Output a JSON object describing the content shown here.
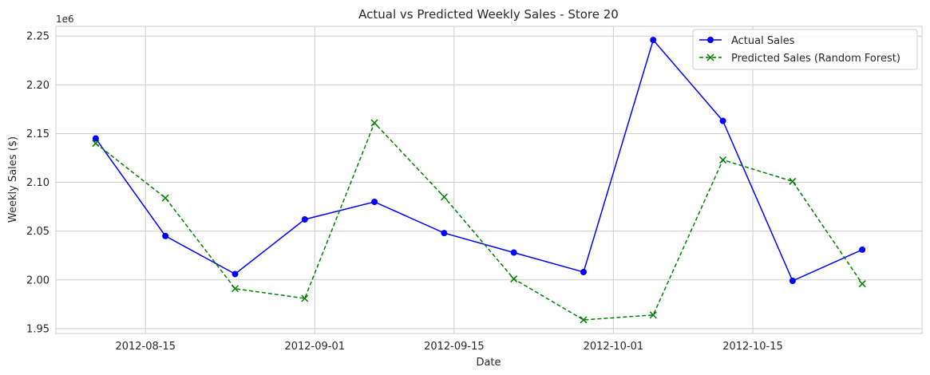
{
  "chart_data": {
    "type": "line",
    "title": "Actual vs Predicted Weekly Sales - Store 20",
    "xlabel": "Date",
    "ylabel": "Weekly Sales ($)",
    "y_offset_label": "1e6",
    "x_ticks": [
      "2012-08-15",
      "2012-09-01",
      "2012-09-15",
      "2012-10-01",
      "2012-10-15"
    ],
    "y_ticks": [
      1.95,
      2.0,
      2.05,
      2.1,
      2.15,
      2.2,
      2.25
    ],
    "y_tick_labels": [
      "1.95",
      "2.00",
      "2.05",
      "2.10",
      "2.15",
      "2.20",
      "2.25"
    ],
    "xlim": [
      "2012-08-06",
      "2012-11-01"
    ],
    "ylim": [
      1.945,
      2.26
    ],
    "grid": true,
    "legend_position": "top-right",
    "x": [
      "2012-08-10",
      "2012-08-17",
      "2012-08-24",
      "2012-08-31",
      "2012-09-07",
      "2012-09-14",
      "2012-09-21",
      "2012-09-28",
      "2012-10-05",
      "2012-10-12",
      "2012-10-19",
      "2012-10-26"
    ],
    "series": [
      {
        "name": "Actual Sales",
        "color": "#0000ff",
        "marker": "circle",
        "linestyle": "solid",
        "values": [
          2.145,
          2.045,
          2.006,
          2.062,
          2.08,
          2.048,
          2.028,
          2.008,
          2.246,
          2.163,
          1.999,
          2.031
        ]
      },
      {
        "name": "Predicted Sales (Random Forest)",
        "color": "#008000",
        "marker": "x",
        "linestyle": "dashed",
        "values": [
          2.14,
          2.084,
          1.991,
          1.981,
          2.161,
          2.085,
          2.001,
          1.959,
          1.964,
          2.123,
          2.101,
          1.996
        ]
      }
    ]
  }
}
